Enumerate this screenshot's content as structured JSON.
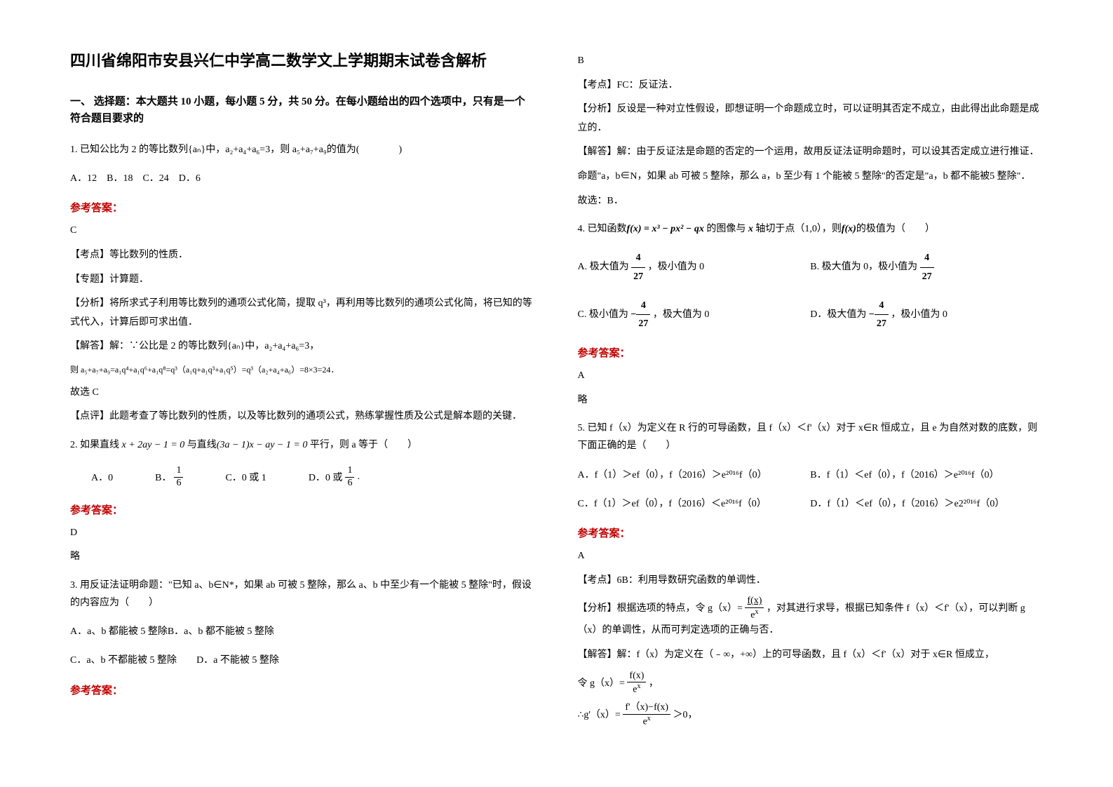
{
  "title": "四川省绵阳市安县兴仁中学高二数学文上学期期末试卷含解析",
  "section1_header": "一、 选择题：本大题共 10 小题，每小题 5 分，共 50 分。在每小题给出的四个选项中，只有是一个符合题目要求的",
  "q1": {
    "text": "1. 已知公比为 2 的等比数列{aₙ}中，a₂+a₄+a₆=3，则 a₅+a₇+a₉的值为(　　　　)",
    "options": "A．12　B．18　C．24　D．6",
    "answer_label": "参考答案：",
    "answer": "C",
    "point": "【考点】等比数列的性质．",
    "special": "【专题】计算题．",
    "analysis": "【分析】将所求式子利用等比数列的通项公式化简，提取 q³，再利用等比数列的通项公式化简，将已知的等式代入，计算后即可求出值．",
    "solve1": "【解答】解：∵公比是 2 的等比数列{aₙ}中，a₂+a₄+a₆=3，",
    "solve2": "则 a₅+a₇+a₉=a₁q⁴+a₁q⁶+a₁q⁸=q³（a₁q+a₁q³+a₁q⁵）=q³（a₂+a₄+a₆）=8×3=24．",
    "solve3": "故选 C",
    "comment": "【点评】此题考查了等比数列的性质，以及等比数列的通项公式，熟练掌握性质及公式是解本题的关键．"
  },
  "q2": {
    "text_pre": "2. 如果直线 ",
    "eq1": "x + 2ay − 1 = 0",
    "text_mid": " 与直线",
    "eq2": "(3a − 1)x − ay − 1 = 0",
    "text_post": " 平行，则 a 等于（　　）",
    "optA": "A．0",
    "optB_pre": "B．",
    "optC": "C．0 或 1",
    "optD_pre": "D．0 或",
    "answer_label": "参考答案：",
    "answer": "D",
    "note": "略"
  },
  "q3": {
    "text": "3. 用反证法证明命题：\"已知 a、b∈N*，如果 ab 可被 5 整除，那么 a、b 中至少有一个能被 5 整除\"时，假设的内容应为（　　）",
    "optA": "A．a、b 都能被 5 整除",
    "optB": "B．a、b 都不能被 5 整除",
    "optC": "C．a、b 不都能被 5 整除",
    "optD": "D．a 不能被 5 整除",
    "answer_label": "参考答案：",
    "answer": "B",
    "point": "【考点】FC：反证法．",
    "analysis": "【分析】反设是一种对立性假设，即想证明一个命题成立时，可以证明其否定不成立，由此得出此命题是成立的．",
    "solve1": "【解答】解：由于反证法是命题的否定的一个运用，故用反证法证明命题时，可以设其否定成立进行推证．",
    "solve2": "命题\"a，b∈N，如果 ab 可被 5 整除，那么 a，b 至少有 1 个能被 5 整除\"的否定是\"a，b 都不能被5 整除\"．",
    "solve3": "故选：B．"
  },
  "q4": {
    "text_pre": "4. 已知函数",
    "eq": "f(x) = x³ − px² − qx",
    "text_mid": " 的图像与 ",
    "xaxis": "x",
    "text_post": " 轴切于点（1,0），则",
    "fx": "f(x)",
    "text_end": "的极值为（　　）",
    "optA_pre": "A. 极大值为",
    "optA_post": "，极小值为 0",
    "optB_pre": "B. 极大值为 0，极小值为",
    "optC_pre": "C. 极小值为",
    "optC_post": "，极大值为 0",
    "optD_pre": "D．极大值为",
    "optD_post": "，极小值为 0",
    "answer_label": "参考答案：",
    "answer": "A",
    "note": "略"
  },
  "q5": {
    "text": "5. 已知 f（x）为定义在 R 行的可导函数，且 f（x）＜f'（x）对于 x∈R 恒成立，且 e 为自然对数的底数，则下面正确的是（　　）",
    "optA": "A．f（1）＞ef（0），f（2016）＞e²⁰¹⁶f（0）",
    "optB": "B．f（1）＜ef（0），f（2016）＞e²⁰¹⁶f（0）",
    "optC": "C．f（1）＞ef（0），f（2016）＜e²⁰¹⁶f（0）",
    "optD": "D．f（1）＜ef（0），f（2016）＞e2²⁰¹⁶f（0）",
    "answer_label": "参考答案：",
    "answer": "A",
    "point": "【考点】6B：利用导数研究函数的单调性．",
    "analysis_pre": "【分析】根据选项的特点，令 g（x）= ",
    "analysis_post": "，对其进行求导，根据已知条件 f（x）＜f'（x），可以判断 g（x）的单调性，从而可判定选项的正确与否．",
    "solve1": "【解答】解：f（x）为定义在（﹣∞，+∞）上的可导函数，且 f（x）＜f'（x）对于 x∈R 恒成立，",
    "solve2_pre": "令 g（x）= ",
    "solve2_post": "，",
    "solve3_pre": "∴g'（x）=",
    "solve3_post": "＞0，"
  }
}
